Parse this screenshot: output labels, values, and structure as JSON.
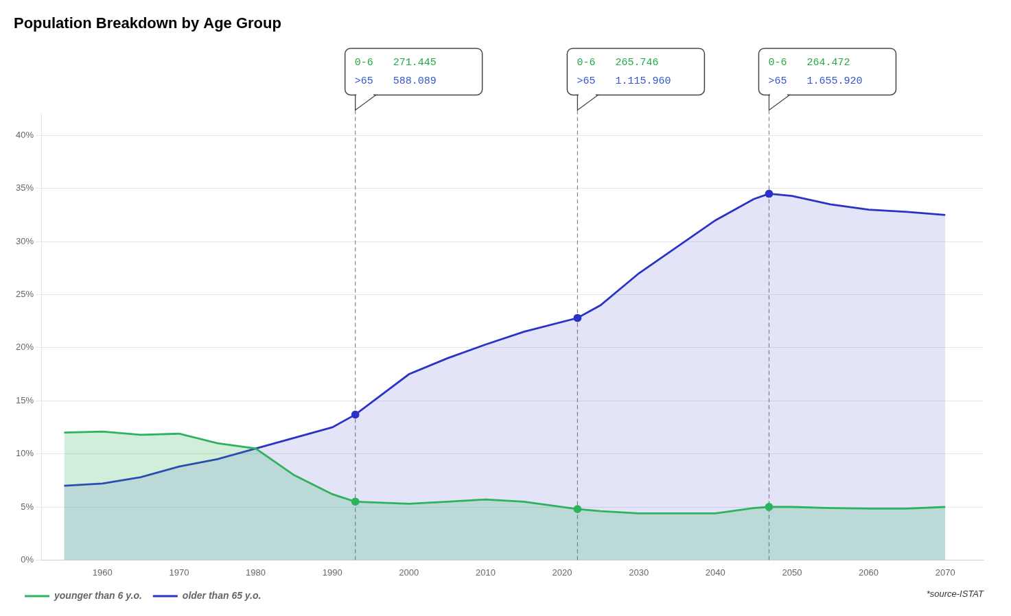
{
  "chart_data": {
    "type": "line",
    "title": "Population Breakdown by Age Group",
    "source": "*source-ISTAT",
    "x": [
      1955,
      1960,
      1965,
      1970,
      1975,
      1980,
      1985,
      1990,
      1993,
      2000,
      2005,
      2010,
      2015,
      2022,
      2025,
      2030,
      2035,
      2040,
      2045,
      2047,
      2050,
      2055,
      2060,
      2065,
      2070
    ],
    "series": [
      {
        "name": "younger than 6 y.o.",
        "color": "#2db35d",
        "values": [
          12.0,
          12.1,
          11.8,
          11.9,
          11.0,
          10.5,
          8.0,
          6.2,
          5.5,
          5.3,
          5.5,
          5.7,
          5.5,
          4.8,
          4.6,
          4.4,
          4.4,
          4.4,
          4.9,
          5.0,
          5.0,
          4.9,
          4.85,
          4.85,
          5.0
        ]
      },
      {
        "name": "older than 65 y.o.",
        "color": "#2a32c8",
        "values": [
          7.0,
          7.2,
          7.8,
          8.8,
          9.5,
          10.5,
          11.5,
          12.5,
          13.7,
          17.5,
          19.0,
          20.3,
          21.5,
          22.8,
          24.0,
          27.0,
          29.5,
          32.0,
          34.0,
          34.5,
          34.3,
          33.5,
          33.0,
          32.8,
          32.5
        ]
      }
    ],
    "annotations": [
      {
        "x": 1993,
        "rows": [
          {
            "label": "0-6",
            "text": "271.445",
            "color": "#22aa44"
          },
          {
            "label": ">65",
            "text": "588.089",
            "color": "#3355cc"
          }
        ]
      },
      {
        "x": 2022,
        "rows": [
          {
            "label": "0-6",
            "text": "265.746",
            "color": "#22aa44"
          },
          {
            "label": ">65",
            "text": "1.115.960",
            "color": "#3355cc"
          }
        ]
      },
      {
        "x": 2047,
        "rows": [
          {
            "label": "0-6",
            "text": "264.472",
            "color": "#22aa44"
          },
          {
            "label": ">65",
            "text": "1.655.920",
            "color": "#3355cc"
          }
        ]
      }
    ],
    "xlim": [
      1952,
      2075
    ],
    "xticks": [
      1960,
      1970,
      1980,
      1990,
      2000,
      2010,
      2020,
      2030,
      2040,
      2050,
      2060,
      2070
    ],
    "ylim": [
      0,
      42
    ],
    "yticks": [
      {
        "value": 0,
        "label": "0%"
      },
      {
        "value": 5,
        "label": "5%"
      },
      {
        "value": 10,
        "label": "10%"
      },
      {
        "value": 15,
        "label": "15%"
      },
      {
        "value": 20,
        "label": "20%"
      },
      {
        "value": 25,
        "label": "25%"
      },
      {
        "value": 30,
        "label": "30%"
      },
      {
        "value": 35,
        "label": "35%"
      },
      {
        "value": 40,
        "label": "40%"
      }
    ],
    "grid": "y",
    "legend": "lower left"
  }
}
